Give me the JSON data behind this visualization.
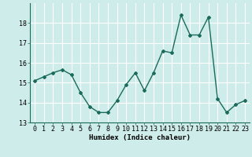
{
  "x": [
    0,
    1,
    2,
    3,
    4,
    5,
    6,
    7,
    8,
    9,
    10,
    11,
    12,
    13,
    14,
    15,
    16,
    17,
    18,
    19,
    20,
    21,
    22,
    23
  ],
  "y": [
    15.1,
    15.3,
    15.5,
    15.65,
    15.4,
    14.5,
    13.8,
    13.5,
    13.5,
    14.1,
    14.9,
    15.5,
    14.6,
    15.5,
    16.6,
    16.5,
    18.4,
    17.4,
    17.4,
    18.3,
    14.2,
    13.5,
    13.9,
    14.1
  ],
  "xlabel": "Humidex (Indice chaleur)",
  "ylim": [
    13,
    19
  ],
  "xlim": [
    -0.5,
    23.5
  ],
  "yticks": [
    13,
    14,
    15,
    16,
    17,
    18
  ],
  "xticks": [
    0,
    1,
    2,
    3,
    4,
    5,
    6,
    7,
    8,
    9,
    10,
    11,
    12,
    13,
    14,
    15,
    16,
    17,
    18,
    19,
    20,
    21,
    22,
    23
  ],
  "xtick_labels": [
    "0",
    "1",
    "2",
    "3",
    "4",
    "5",
    "6",
    "7",
    "8",
    "9",
    "10",
    "11",
    "12",
    "13",
    "14",
    "15",
    "16",
    "17",
    "18",
    "19",
    "20",
    "21",
    "22",
    "23"
  ],
  "line_color": "#1a6b5a",
  "bg_color": "#ceecea",
  "grid_color": "#ffffff",
  "marker": "D",
  "marker_size": 2.0,
  "line_width": 1.0,
  "tick_fontsize": 6.0,
  "xlabel_fontsize": 6.5
}
